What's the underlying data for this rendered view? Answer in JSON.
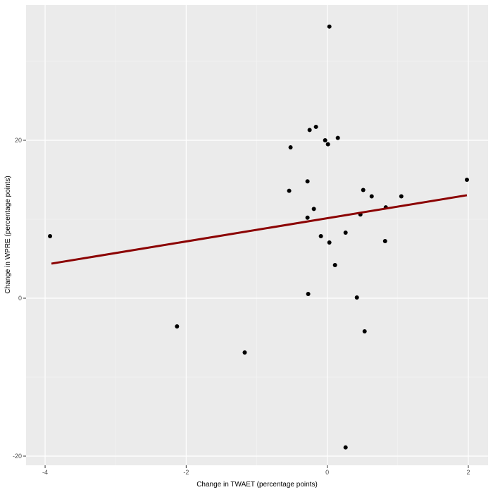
{
  "chart_data": {
    "type": "scatter",
    "x_label": "Change in TWAET (percentage points)",
    "y_label": "Change in WPRE (percentage points)",
    "x": [
      -3.93,
      -2.13,
      -1.17,
      0.03,
      -0.25,
      -0.16,
      0.15,
      -0.03,
      0.01,
      -0.52,
      -0.28,
      -0.54,
      0.51,
      0.63,
      1.05,
      1.98,
      0.83,
      0.47,
      -0.19,
      -0.28,
      -0.09,
      0.26,
      0.03,
      0.82,
      0.11,
      -0.27,
      0.42,
      0.53,
      0.26
    ],
    "values": [
      7.86,
      -3.57,
      -6.88,
      34.4,
      21.3,
      21.7,
      20.3,
      20.0,
      19.5,
      19.1,
      14.8,
      13.6,
      13.7,
      12.9,
      12.9,
      15.0,
      11.5,
      10.6,
      11.3,
      10.2,
      7.86,
      8.3,
      7.05,
      7.23,
      4.2,
      0.54,
      0.09,
      -4.2,
      -18.9
    ],
    "color": "#000000",
    "fit": {
      "x": [
        -3.91,
        1.98
      ],
      "values": [
        4.38,
        13.04
      ],
      "color": "#8b0000"
    },
    "xlim": [
      -4.27,
      2.28
    ],
    "ylim": [
      -21.16,
      37.14
    ],
    "xticks": [
      -4,
      -2,
      0,
      2
    ],
    "yticks": [
      -20,
      0,
      20
    ],
    "xminor": [
      -3,
      -1,
      1
    ],
    "yminor": [
      -10,
      10,
      30
    ],
    "grid": true
  }
}
